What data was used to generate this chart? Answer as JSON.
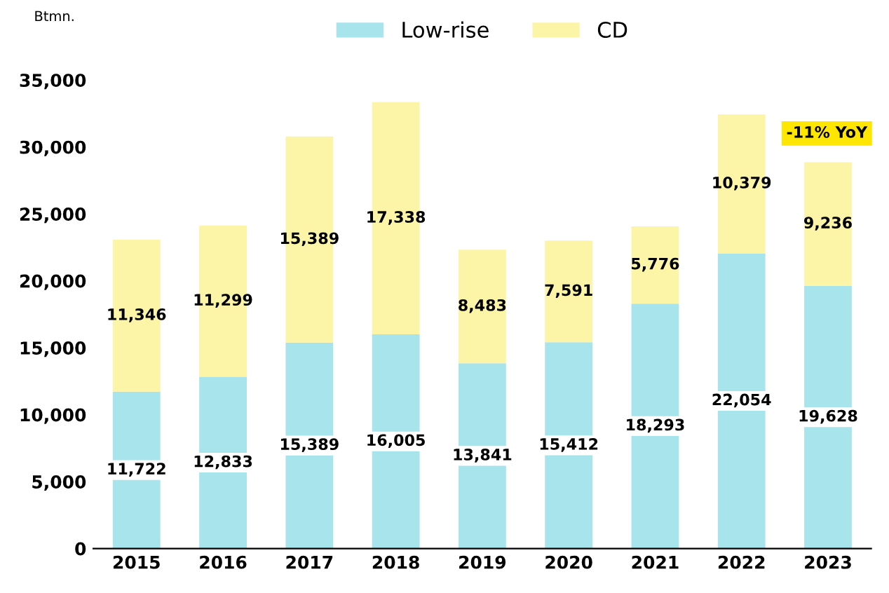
{
  "chart_data": {
    "type": "bar",
    "stacked": true,
    "ylabel": "Btmn.",
    "categories": [
      "2015",
      "2016",
      "2017",
      "2018",
      "2019",
      "2020",
      "2021",
      "2022",
      "2023"
    ],
    "series": [
      {
        "name": "Low-rise",
        "color": "#a8e4ec",
        "values": [
          11722,
          12833,
          15389,
          16005,
          13841,
          15412,
          18293,
          22054,
          19628
        ],
        "value_labels": [
          "11,722",
          "12,833",
          "15,389",
          "16,005",
          "13,841",
          "15,412",
          "18,293",
          "22,054",
          "19,628"
        ]
      },
      {
        "name": "CD",
        "color": "#fcf5a8",
        "values": [
          11346,
          11299,
          15389,
          17338,
          8483,
          7591,
          5776,
          10379,
          9236
        ],
        "value_labels": [
          "11,346",
          "11,299",
          "15,389",
          "17,338",
          "8,483",
          "7,591",
          "5,776",
          "10,379",
          "9,236"
        ]
      }
    ],
    "ylim": [
      0,
      35000
    ],
    "yticks": [
      0,
      {
        "value": 5000,
        "label": "5,000"
      },
      {
        "value": 10000,
        "label": "10,000"
      },
      {
        "value": 15000,
        "label": "15,000"
      },
      {
        "value": 20000,
        "label": "20,000"
      },
      {
        "value": 25000,
        "label": "25,000"
      },
      {
        "value": 30000,
        "label": "30,000"
      },
      {
        "value": 35000,
        "label": "35,000"
      }
    ],
    "legend": "top",
    "grid": false,
    "annotations": [
      "-11% YoY"
    ]
  }
}
